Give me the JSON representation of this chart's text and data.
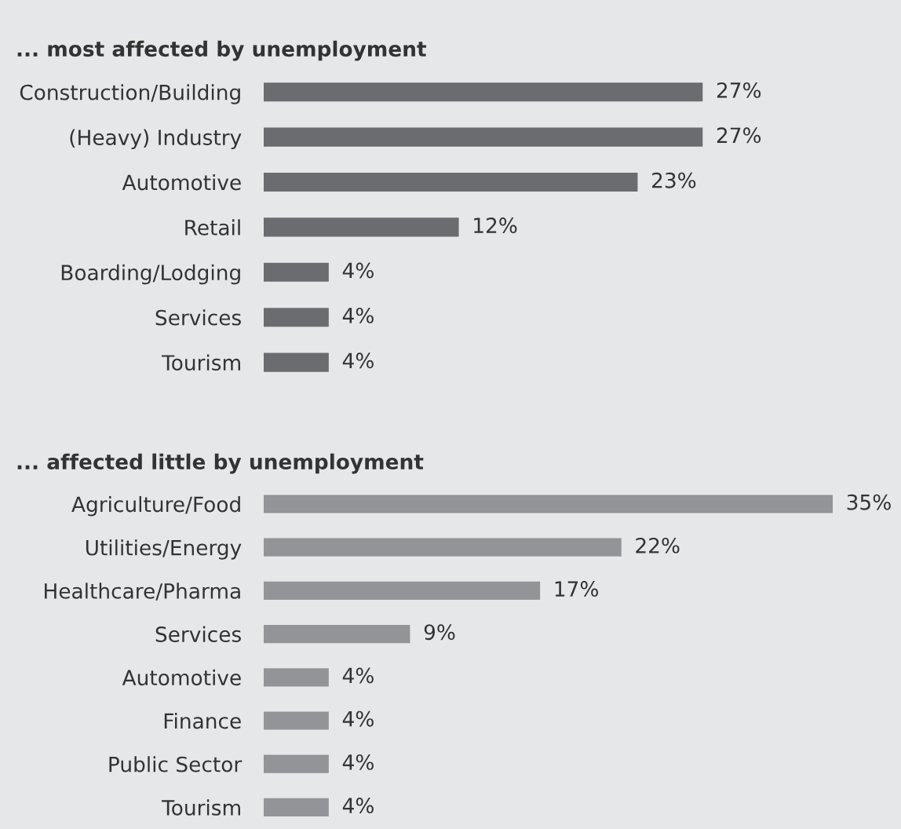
{
  "chart_data": [
    {
      "type": "bar",
      "orientation": "horizontal",
      "title": "... most affected by unemployment",
      "categories": [
        "Construction/Building",
        "(Heavy) Industry",
        "Automotive",
        "Retail",
        "Boarding/Lodging",
        "Services",
        "Tourism"
      ],
      "values": [
        27,
        27,
        23,
        12,
        4,
        4,
        4
      ],
      "value_labels": [
        "27%",
        "27%",
        "23%",
        "12%",
        "4%",
        "4%",
        "4%"
      ],
      "color": "#6b6c70"
    },
    {
      "type": "bar",
      "orientation": "horizontal",
      "title": "... affected little by unemployment",
      "categories": [
        "Agriculture/Food",
        "Utilities/Energy",
        "Healthcare/Pharma",
        "Services",
        "Automotive",
        "Finance",
        "Public Sector",
        "Tourism"
      ],
      "values": [
        35,
        22,
        17,
        9,
        4,
        4,
        4,
        4
      ],
      "value_labels": [
        "35%",
        "22%",
        "17%",
        "9%",
        "4%",
        "4%",
        "4%",
        "4%"
      ],
      "color": "#939497"
    }
  ]
}
